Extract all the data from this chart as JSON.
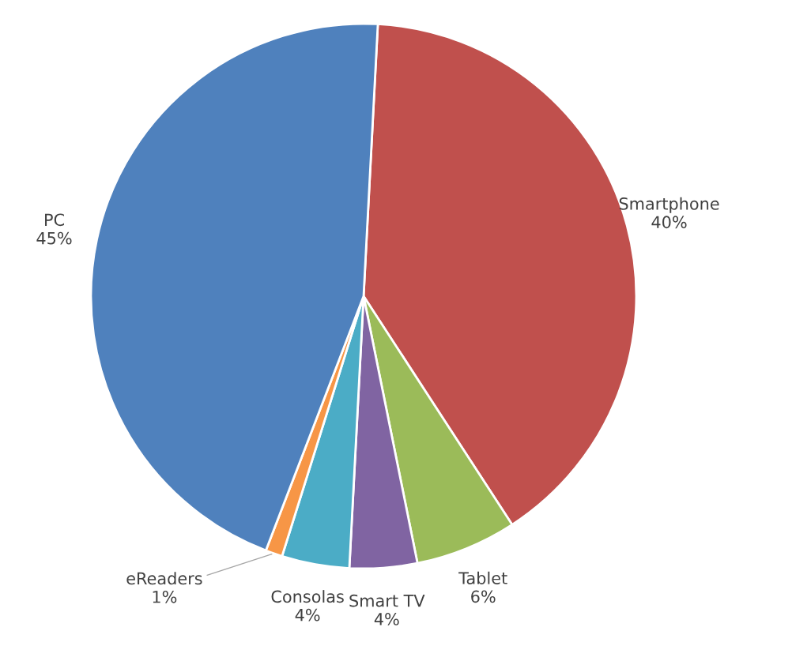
{
  "chart_data": {
    "type": "pie",
    "categories": [
      "Smartphone",
      "Tablet",
      "Smart TV",
      "Consolas",
      "eReaders",
      "PC"
    ],
    "values": [
      40,
      6,
      4,
      4,
      1,
      45
    ],
    "value_labels": [
      "40%",
      "6%",
      "4%",
      "4%",
      "1%",
      "45%"
    ],
    "colors": [
      "#c0504d",
      "#9bbb59",
      "#8064a2",
      "#4bacc6",
      "#f79646",
      "#4f81bd"
    ],
    "legend": false
  }
}
